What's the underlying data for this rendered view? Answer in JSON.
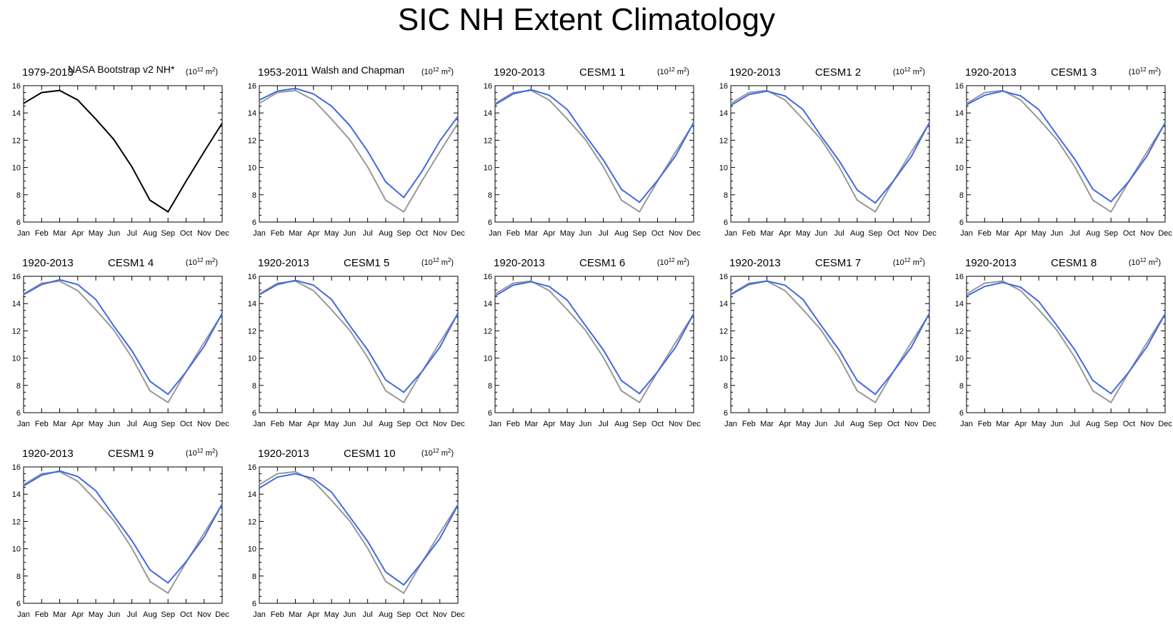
{
  "figure": {
    "title": "SIC NH Extent Climatology",
    "units_base": "(10",
    "units_exp1": "12",
    "units_mid": " m",
    "units_exp2": "2",
    "units_end": ")"
  },
  "colors": {
    "observed": "#000000",
    "reference": "#999999",
    "model": "#4169e1",
    "axis": "#000000"
  },
  "chart_data": [
    {
      "type": "line",
      "period": "1979-2013",
      "name": "NASA Bootstrap v2 NH*",
      "categories": [
        "Jan",
        "Feb",
        "Mar",
        "Apr",
        "May",
        "Jun",
        "Jul",
        "Aug",
        "Sep",
        "Oct",
        "Nov",
        "Dec"
      ],
      "ylim": [
        6,
        16
      ],
      "yticks": [
        6,
        8,
        10,
        12,
        14,
        16
      ],
      "series": [
        {
          "name": "NASA Bootstrap v2 NH*",
          "role": "observed",
          "values": [
            14.7,
            15.5,
            15.65,
            14.95,
            13.55,
            12.05,
            10.05,
            7.6,
            6.75,
            9.0,
            11.15,
            13.25
          ]
        }
      ]
    },
    {
      "type": "line",
      "period": "1953-2011",
      "name": "Walsh and Chapman",
      "categories": [
        "Jan",
        "Feb",
        "Mar",
        "Apr",
        "May",
        "Jun",
        "Jul",
        "Aug",
        "Sep",
        "Oct",
        "Nov",
        "Dec"
      ],
      "ylim": [
        6,
        16
      ],
      "yticks": [
        6,
        8,
        10,
        12,
        14,
        16
      ],
      "series": [
        {
          "name": "NASA Bootstrap v2 NH*",
          "role": "reference",
          "values": [
            14.7,
            15.5,
            15.65,
            14.95,
            13.55,
            12.05,
            10.05,
            7.6,
            6.75,
            9.0,
            11.15,
            13.25
          ]
        },
        {
          "name": "Walsh and Chapman",
          "role": "model",
          "values": [
            14.95,
            15.6,
            15.8,
            15.4,
            14.5,
            13.1,
            11.2,
            8.95,
            7.8,
            9.7,
            11.95,
            13.75
          ]
        }
      ]
    },
    {
      "type": "line",
      "period": "1920-2013",
      "name": "CESM1 1",
      "categories": [
        "Jan",
        "Feb",
        "Mar",
        "Apr",
        "May",
        "Jun",
        "Jul",
        "Aug",
        "Sep",
        "Oct",
        "Nov",
        "Dec"
      ],
      "ylim": [
        6,
        16
      ],
      "yticks": [
        6,
        8,
        10,
        12,
        14,
        16
      ],
      "series": [
        {
          "name": "NASA Bootstrap v2 NH*",
          "role": "reference",
          "values": [
            14.7,
            15.5,
            15.65,
            14.95,
            13.55,
            12.05,
            10.05,
            7.6,
            6.75,
            9.0,
            11.15,
            13.25
          ]
        },
        {
          "name": "CESM1 1",
          "role": "model",
          "values": [
            14.6,
            15.4,
            15.7,
            15.3,
            14.25,
            12.35,
            10.55,
            8.4,
            7.45,
            9.05,
            10.85,
            13.3
          ]
        }
      ]
    },
    {
      "type": "line",
      "period": "1920-2013",
      "name": "CESM1 2",
      "categories": [
        "Jan",
        "Feb",
        "Mar",
        "Apr",
        "May",
        "Jun",
        "Jul",
        "Aug",
        "Sep",
        "Oct",
        "Nov",
        "Dec"
      ],
      "ylim": [
        6,
        16
      ],
      "yticks": [
        6,
        8,
        10,
        12,
        14,
        16
      ],
      "series": [
        {
          "name": "NASA Bootstrap v2 NH*",
          "role": "reference",
          "values": [
            14.7,
            15.5,
            15.65,
            14.95,
            13.55,
            12.05,
            10.05,
            7.6,
            6.75,
            9.0,
            11.15,
            13.25
          ]
        },
        {
          "name": "CESM1 2",
          "role": "model",
          "values": [
            14.55,
            15.35,
            15.6,
            15.25,
            14.25,
            12.3,
            10.5,
            8.35,
            7.4,
            9.0,
            10.8,
            13.3
          ]
        }
      ]
    },
    {
      "type": "line",
      "period": "1920-2013",
      "name": "CESM1 3",
      "categories": [
        "Jan",
        "Feb",
        "Mar",
        "Apr",
        "May",
        "Jun",
        "Jul",
        "Aug",
        "Sep",
        "Oct",
        "Nov",
        "Dec"
      ],
      "ylim": [
        6,
        16
      ],
      "yticks": [
        6,
        8,
        10,
        12,
        14,
        16
      ],
      "series": [
        {
          "name": "NASA Bootstrap v2 NH*",
          "role": "reference",
          "values": [
            14.7,
            15.5,
            15.65,
            14.95,
            13.55,
            12.05,
            10.05,
            7.6,
            6.75,
            9.0,
            11.15,
            13.25
          ]
        },
        {
          "name": "CESM1 3",
          "role": "model",
          "values": [
            14.6,
            15.3,
            15.6,
            15.25,
            14.25,
            12.4,
            10.6,
            8.4,
            7.5,
            9.0,
            10.85,
            13.3
          ]
        }
      ]
    },
    {
      "type": "line",
      "period": "1920-2013",
      "name": "CESM1 4",
      "categories": [
        "Jan",
        "Feb",
        "Mar",
        "Apr",
        "May",
        "Jun",
        "Jul",
        "Aug",
        "Sep",
        "Oct",
        "Nov",
        "Dec"
      ],
      "ylim": [
        6,
        16
      ],
      "yticks": [
        6,
        8,
        10,
        12,
        14,
        16
      ],
      "series": [
        {
          "name": "NASA Bootstrap v2 NH*",
          "role": "reference",
          "values": [
            14.7,
            15.5,
            15.65,
            14.95,
            13.55,
            12.05,
            10.05,
            7.6,
            6.75,
            9.0,
            11.15,
            13.25
          ]
        },
        {
          "name": "CESM1 4",
          "role": "model",
          "values": [
            14.65,
            15.4,
            15.75,
            15.4,
            14.3,
            12.35,
            10.55,
            8.3,
            7.35,
            9.0,
            10.85,
            13.3
          ]
        }
      ]
    },
    {
      "type": "line",
      "period": "1920-2013",
      "name": "CESM1 5",
      "categories": [
        "Jan",
        "Feb",
        "Mar",
        "Apr",
        "May",
        "Jun",
        "Jul",
        "Aug",
        "Sep",
        "Oct",
        "Nov",
        "Dec"
      ],
      "ylim": [
        6,
        16
      ],
      "yticks": [
        6,
        8,
        10,
        12,
        14,
        16
      ],
      "series": [
        {
          "name": "NASA Bootstrap v2 NH*",
          "role": "reference",
          "values": [
            14.7,
            15.5,
            15.65,
            14.95,
            13.55,
            12.05,
            10.05,
            7.6,
            6.75,
            9.0,
            11.15,
            13.25
          ]
        },
        {
          "name": "CESM1 5",
          "role": "model",
          "values": [
            14.65,
            15.4,
            15.7,
            15.35,
            14.3,
            12.4,
            10.6,
            8.4,
            7.5,
            9.0,
            10.8,
            13.3
          ]
        }
      ]
    },
    {
      "type": "line",
      "period": "1920-2013",
      "name": "CESM1 6",
      "categories": [
        "Jan",
        "Feb",
        "Mar",
        "Apr",
        "May",
        "Jun",
        "Jul",
        "Aug",
        "Sep",
        "Oct",
        "Nov",
        "Dec"
      ],
      "ylim": [
        6,
        16
      ],
      "yticks": [
        6,
        8,
        10,
        12,
        14,
        16
      ],
      "series": [
        {
          "name": "NASA Bootstrap v2 NH*",
          "role": "reference",
          "values": [
            14.7,
            15.5,
            15.65,
            14.95,
            13.55,
            12.05,
            10.05,
            7.6,
            6.75,
            9.0,
            11.15,
            13.25
          ]
        },
        {
          "name": "CESM1 6",
          "role": "model",
          "values": [
            14.55,
            15.35,
            15.6,
            15.25,
            14.25,
            12.4,
            10.6,
            8.35,
            7.4,
            9.0,
            10.8,
            13.25
          ]
        }
      ]
    },
    {
      "type": "line",
      "period": "1920-2013",
      "name": "CESM1 7",
      "categories": [
        "Jan",
        "Feb",
        "Mar",
        "Apr",
        "May",
        "Jun",
        "Jul",
        "Aug",
        "Sep",
        "Oct",
        "Nov",
        "Dec"
      ],
      "ylim": [
        6,
        16
      ],
      "yticks": [
        6,
        8,
        10,
        12,
        14,
        16
      ],
      "series": [
        {
          "name": "NASA Bootstrap v2 NH*",
          "role": "reference",
          "values": [
            14.7,
            15.5,
            15.65,
            14.95,
            13.55,
            12.05,
            10.05,
            7.6,
            6.75,
            9.0,
            11.15,
            13.25
          ]
        },
        {
          "name": "CESM1 7",
          "role": "model",
          "values": [
            14.65,
            15.4,
            15.65,
            15.35,
            14.3,
            12.4,
            10.6,
            8.35,
            7.35,
            9.0,
            10.8,
            13.3
          ]
        }
      ]
    },
    {
      "type": "line",
      "period": "1920-2013",
      "name": "CESM1 8",
      "categories": [
        "Jan",
        "Feb",
        "Mar",
        "Apr",
        "May",
        "Jun",
        "Jul",
        "Aug",
        "Sep",
        "Oct",
        "Nov",
        "Dec"
      ],
      "ylim": [
        6,
        16
      ],
      "yticks": [
        6,
        8,
        10,
        12,
        14,
        16
      ],
      "series": [
        {
          "name": "NASA Bootstrap v2 NH*",
          "role": "reference",
          "values": [
            14.7,
            15.5,
            15.65,
            14.95,
            13.55,
            12.05,
            10.05,
            7.6,
            6.75,
            9.0,
            11.15,
            13.25
          ]
        },
        {
          "name": "CESM1 8",
          "role": "model",
          "values": [
            14.55,
            15.25,
            15.55,
            15.2,
            14.15,
            12.4,
            10.6,
            8.35,
            7.4,
            9.0,
            10.85,
            13.25
          ]
        }
      ]
    },
    {
      "type": "line",
      "period": "1920-2013",
      "name": "CESM1 9",
      "categories": [
        "Jan",
        "Feb",
        "Mar",
        "Apr",
        "May",
        "Jun",
        "Jul",
        "Aug",
        "Sep",
        "Oct",
        "Nov",
        "Dec"
      ],
      "ylim": [
        6,
        16
      ],
      "yticks": [
        6,
        8,
        10,
        12,
        14,
        16
      ],
      "series": [
        {
          "name": "NASA Bootstrap v2 NH*",
          "role": "reference",
          "values": [
            14.7,
            15.5,
            15.65,
            14.95,
            13.55,
            12.05,
            10.05,
            7.6,
            6.75,
            9.0,
            11.15,
            13.25
          ]
        },
        {
          "name": "CESM1 9",
          "role": "model",
          "values": [
            14.6,
            15.4,
            15.7,
            15.3,
            14.25,
            12.4,
            10.6,
            8.45,
            7.5,
            9.05,
            10.85,
            13.3
          ]
        }
      ]
    },
    {
      "type": "line",
      "period": "1920-2013",
      "name": "CESM1 10",
      "categories": [
        "Jan",
        "Feb",
        "Mar",
        "Apr",
        "May",
        "Jun",
        "Jul",
        "Aug",
        "Sep",
        "Oct",
        "Nov",
        "Dec"
      ],
      "ylim": [
        6,
        16
      ],
      "yticks": [
        6,
        8,
        10,
        12,
        14,
        16
      ],
      "series": [
        {
          "name": "NASA Bootstrap v2 NH*",
          "role": "reference",
          "values": [
            14.7,
            15.5,
            15.65,
            14.95,
            13.55,
            12.05,
            10.05,
            7.6,
            6.75,
            9.0,
            11.15,
            13.25
          ]
        },
        {
          "name": "CESM1 10",
          "role": "model",
          "values": [
            14.45,
            15.25,
            15.5,
            15.15,
            14.15,
            12.35,
            10.55,
            8.3,
            7.35,
            9.0,
            10.75,
            13.2
          ]
        }
      ]
    }
  ]
}
